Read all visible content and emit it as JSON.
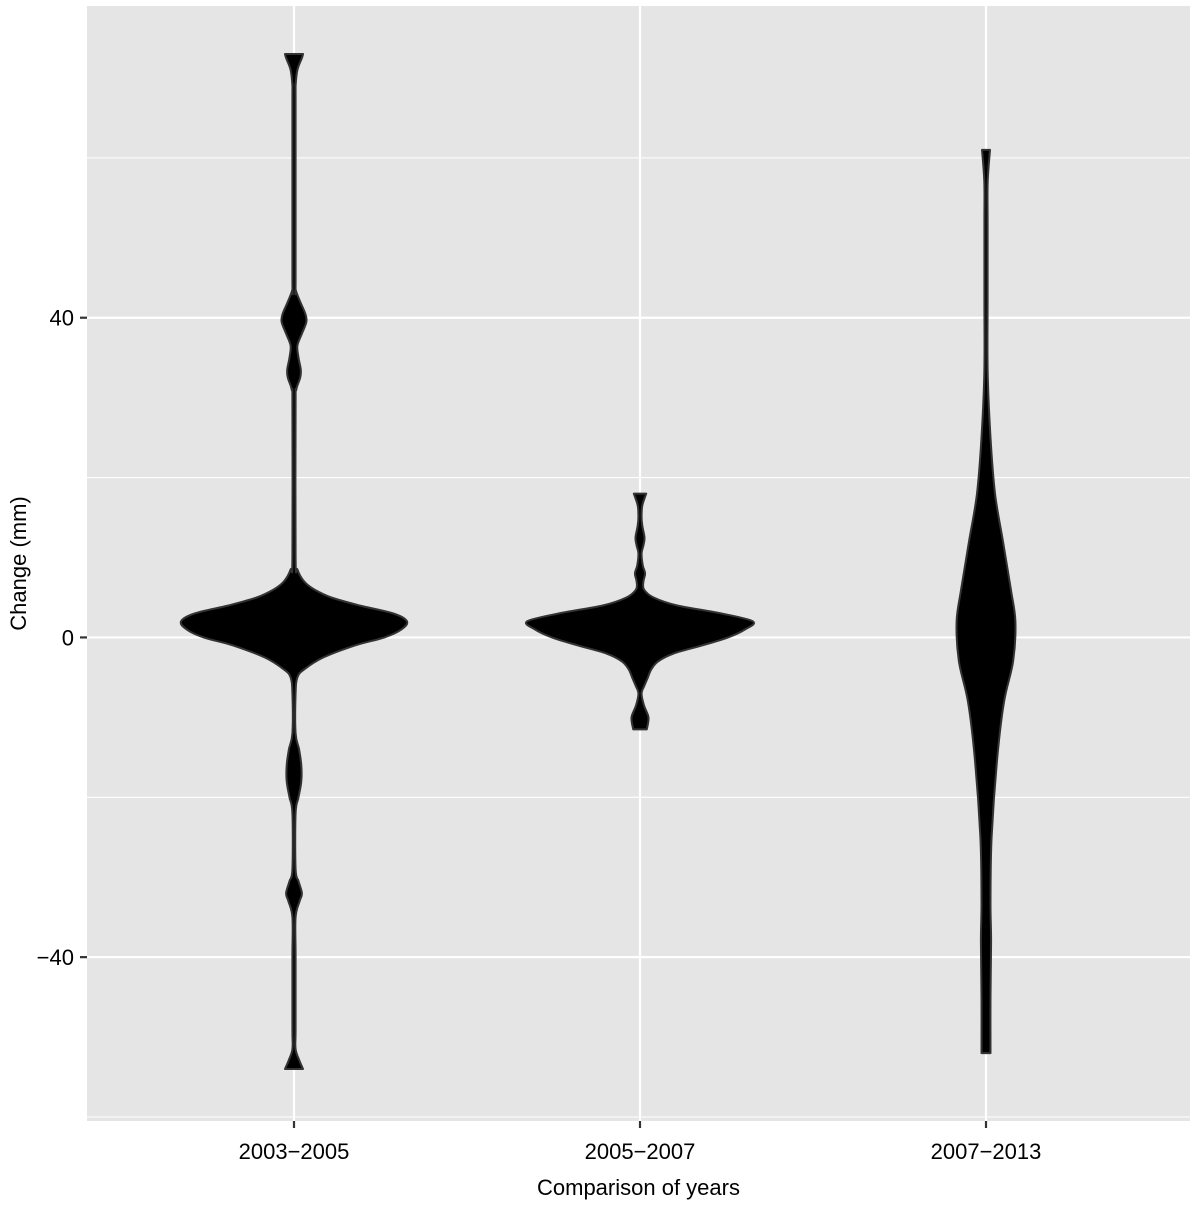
{
  "chart_data": {
    "type": "violin",
    "xlabel": "Comparison of years",
    "ylabel": "Change (mm)",
    "ylim": [
      -60.5,
      79
    ],
    "yticks": [
      -40,
      0,
      40
    ],
    "ytick_labels": [
      "−40",
      "0",
      "40"
    ],
    "categories": [
      "2003−2005",
      "2005−2007",
      "2007−2013"
    ],
    "grid": true,
    "legend": "none",
    "colors": {
      "panel": "#e5e5e5",
      "grid": "#ffffff",
      "violin_fill": "#000000",
      "violin_stroke": "#333333",
      "text": "#000000",
      "axis_tick": "#333333"
    },
    "series": [
      {
        "category": "2003−2005",
        "range": [
          -54,
          73
        ],
        "profile": [
          [
            -54,
            0.08
          ],
          [
            -53,
            0.05
          ],
          [
            -51.5,
            0.0
          ],
          [
            -49,
            0.0
          ],
          [
            -40,
            0.0
          ],
          [
            -35,
            0.0
          ],
          [
            -33,
            0.05
          ],
          [
            -32,
            0.07
          ],
          [
            -30.5,
            0.04
          ],
          [
            -29,
            0.0
          ],
          [
            -22,
            0.0
          ],
          [
            -20,
            0.04
          ],
          [
            -18,
            0.065
          ],
          [
            -16,
            0.065
          ],
          [
            -14,
            0.045
          ],
          [
            -12,
            0.0
          ],
          [
            -7,
            0.0
          ],
          [
            -5,
            0.03
          ],
          [
            -4,
            0.09
          ],
          [
            -2.5,
            0.26
          ],
          [
            -1,
            0.54
          ],
          [
            0,
            0.8
          ],
          [
            1,
            0.95
          ],
          [
            2,
            1.0
          ],
          [
            3,
            0.88
          ],
          [
            4,
            0.58
          ],
          [
            5,
            0.33
          ],
          [
            6,
            0.18
          ],
          [
            7,
            0.09
          ],
          [
            8.5,
            0.03
          ],
          [
            10,
            0.0
          ],
          [
            29,
            0.0
          ],
          [
            31,
            0.02
          ],
          [
            32.5,
            0.055
          ],
          [
            33.5,
            0.06
          ],
          [
            35,
            0.04
          ],
          [
            36.5,
            0.03
          ],
          [
            38,
            0.07
          ],
          [
            39.5,
            0.11
          ],
          [
            40.5,
            0.1
          ],
          [
            42,
            0.055
          ],
          [
            43.5,
            0.015
          ],
          [
            45,
            0.0
          ],
          [
            67,
            0.0
          ],
          [
            69,
            0.005
          ],
          [
            71,
            0.03
          ],
          [
            72.5,
            0.07
          ],
          [
            73,
            0.08
          ]
        ]
      },
      {
        "category": "2005−2007",
        "range": [
          -11.5,
          18
        ],
        "profile": [
          [
            -11.5,
            0.06
          ],
          [
            -10,
            0.075
          ],
          [
            -8.5,
            0.035
          ],
          [
            -7,
            0.01
          ],
          [
            -6,
            0.04
          ],
          [
            -5,
            0.07
          ],
          [
            -4,
            0.1
          ],
          [
            -3,
            0.16
          ],
          [
            -2,
            0.3
          ],
          [
            -1,
            0.55
          ],
          [
            0,
            0.78
          ],
          [
            1,
            0.93
          ],
          [
            2,
            1.0
          ],
          [
            3,
            0.72
          ],
          [
            4,
            0.33
          ],
          [
            5,
            0.12
          ],
          [
            6,
            0.035
          ],
          [
            7,
            0.03
          ],
          [
            8,
            0.045
          ],
          [
            9,
            0.025
          ],
          [
            10.5,
            0.0
          ],
          [
            11.5,
            0.03
          ],
          [
            12.5,
            0.04
          ],
          [
            14,
            0.02
          ],
          [
            15,
            0.0
          ],
          [
            16.5,
            0.02
          ],
          [
            18,
            0.055
          ]
        ]
      },
      {
        "category": "2007−2013",
        "range": [
          -52,
          61
        ],
        "profile": [
          [
            -52,
            0.04
          ],
          [
            -45,
            0.04
          ],
          [
            -38,
            0.045
          ],
          [
            -33,
            0.04
          ],
          [
            -25,
            0.05
          ],
          [
            -15,
            0.1
          ],
          [
            -8,
            0.16
          ],
          [
            -3,
            0.24
          ],
          [
            2,
            0.26
          ],
          [
            6,
            0.22
          ],
          [
            12,
            0.15
          ],
          [
            18,
            0.08
          ],
          [
            25,
            0.04
          ],
          [
            33,
            0.015
          ],
          [
            42,
            0.005
          ],
          [
            52,
            0.005
          ],
          [
            57,
            0.015
          ],
          [
            61,
            0.035
          ]
        ]
      }
    ]
  }
}
